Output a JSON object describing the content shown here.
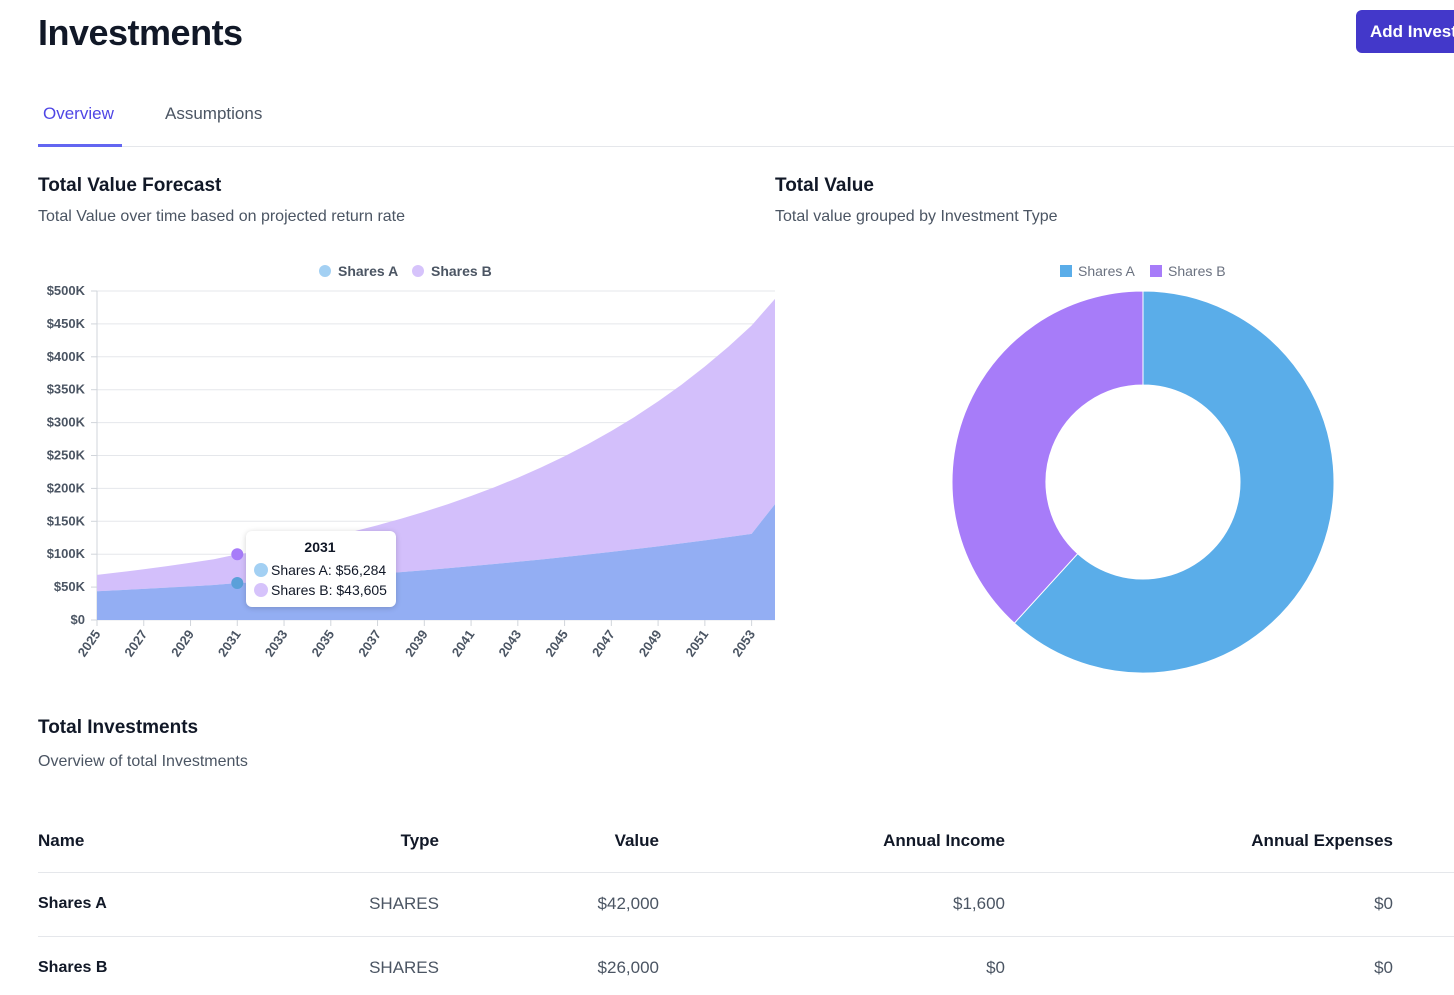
{
  "header": {
    "title": "Investments",
    "add_button_label": "Add Investment"
  },
  "tabs": [
    {
      "label": "Overview",
      "active": true
    },
    {
      "label": "Assumptions",
      "active": false
    }
  ],
  "forecast": {
    "title": "Total Value Forecast",
    "subtitle": "Total Value over time based on projected return rate",
    "tooltip": {
      "title": "2031",
      "rows": [
        "Shares A: $56,284",
        "Shares B: $43,605"
      ]
    }
  },
  "total_value": {
    "title": "Total Value",
    "subtitle": "Total value grouped by Investment Type"
  },
  "table": {
    "title": "Total Investments",
    "subtitle": "Overview of total Investments",
    "columns": [
      "Name",
      "Type",
      "Value",
      "Annual Income",
      "Annual Expenses"
    ],
    "rows": [
      [
        "Shares A",
        "SHARES",
        "$42,000",
        "$1,600",
        "$0"
      ],
      [
        "Shares B",
        "SHARES",
        "$26,000",
        "$0",
        "$0"
      ]
    ]
  },
  "colors": {
    "accent": "#4338ca",
    "shares_a": "#5aade9",
    "shares_b": "#a77cf9",
    "area_a": "#93aef3",
    "area_b": "#d3bffb"
  },
  "chart_data": [
    {
      "type": "area",
      "title": "Total Value Forecast",
      "stacked": true,
      "x": [
        2025,
        2026,
        2027,
        2028,
        2029,
        2030,
        2031,
        2032,
        2033,
        2034,
        2035,
        2036,
        2037,
        2038,
        2039,
        2040,
        2041,
        2042,
        2043,
        2044,
        2045,
        2046,
        2047,
        2048,
        2049,
        2050,
        2051,
        2052,
        2053,
        2054
      ],
      "x_tick_labels": [
        "2025",
        "2027",
        "2029",
        "2031",
        "2033",
        "2035",
        "2037",
        "2039",
        "2041",
        "2043",
        "2045",
        "2047",
        "2049",
        "2051",
        "2053"
      ],
      "y_tick_labels": [
        "$0",
        "$50K",
        "$100K",
        "$150K",
        "$200K",
        "$250K",
        "$300K",
        "$350K",
        "$400K",
        "$450K",
        "$500K"
      ],
      "ylim": [
        0,
        500000
      ],
      "legend": [
        "Shares A",
        "Shares B"
      ],
      "series": [
        {
          "name": "Shares A",
          "values": [
            43680,
            45427,
            47244,
            49134,
            51099,
            53143,
            56284,
            57478,
            59778,
            62169,
            64656,
            67242,
            69931,
            72729,
            75638,
            78663,
            81810,
            85082,
            88486,
            92025,
            95706,
            99534,
            103515,
            107656,
            111962,
            116441,
            121098,
            125942,
            130980,
            176000
          ]
        },
        {
          "name": "Shares B",
          "values": [
            24934,
            27304,
            29899,
            32740,
            35851,
            39257,
            43605,
            47082,
            51555,
            56453,
            61816,
            67689,
            74119,
            81160,
            88870,
            97313,
            106558,
            116681,
            127766,
            139904,
            153195,
            167749,
            183685,
            201135,
            220243,
            241166,
            264077,
            289166,
            316631,
            312000
          ]
        }
      ]
    },
    {
      "type": "pie",
      "title": "Total Value",
      "categories": [
        "Shares A",
        "Shares B"
      ],
      "values": [
        42000,
        26000
      ],
      "legend": [
        "Shares A",
        "Shares B"
      ]
    }
  ]
}
